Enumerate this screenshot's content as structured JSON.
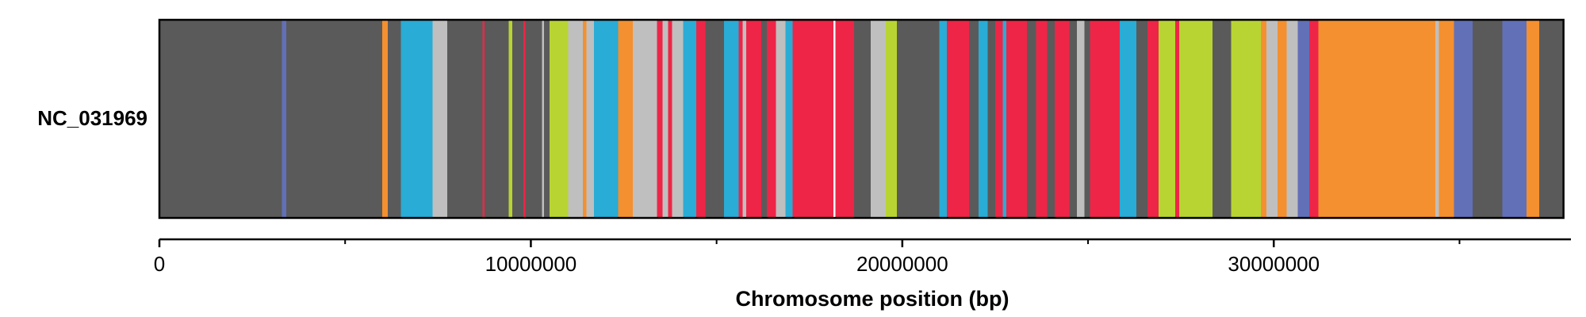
{
  "chart_data": {
    "type": "heatmap",
    "title": "",
    "xlabel": "Chromosome position (bp)",
    "ylabel": "",
    "xlim": [
      0,
      38000000
    ],
    "xticks": [
      0,
      10000000,
      20000000,
      30000000
    ],
    "xtick_labels": [
      "0",
      "10000000",
      "20000000",
      "30000000"
    ],
    "minor_xticks": [
      5000000,
      15000000,
      25000000,
      35000000
    ],
    "legend": "none",
    "grid": false,
    "rows": [
      {
        "label": "NC_031969",
        "track_end": 37800000,
        "segments": [
          {
            "start": 0,
            "end": 3300000,
            "color": "#5a5a5a"
          },
          {
            "start": 3300000,
            "end": 3420000,
            "color": "#6270b8"
          },
          {
            "start": 3420000,
            "end": 6000000,
            "color": "#5a5a5a"
          },
          {
            "start": 6000000,
            "end": 6150000,
            "color": "#f4902f"
          },
          {
            "start": 6150000,
            "end": 6500000,
            "color": "#5a5a5a"
          },
          {
            "start": 6500000,
            "end": 7350000,
            "color": "#29acd5"
          },
          {
            "start": 7350000,
            "end": 7750000,
            "color": "#bfbfbf"
          },
          {
            "start": 7750000,
            "end": 8700000,
            "color": "#5a5a5a"
          },
          {
            "start": 8700000,
            "end": 8750000,
            "color": "#ee2547"
          },
          {
            "start": 8750000,
            "end": 9400000,
            "color": "#5a5a5a"
          },
          {
            "start": 9400000,
            "end": 9500000,
            "color": "#b8d432"
          },
          {
            "start": 9500000,
            "end": 9800000,
            "color": "#5a5a5a"
          },
          {
            "start": 9800000,
            "end": 9850000,
            "color": "#ee2547"
          },
          {
            "start": 9850000,
            "end": 10300000,
            "color": "#5a5a5a"
          },
          {
            "start": 10300000,
            "end": 10350000,
            "color": "#bfbfbf"
          },
          {
            "start": 10350000,
            "end": 10500000,
            "color": "#5a5a5a"
          },
          {
            "start": 10500000,
            "end": 11000000,
            "color": "#b8d432"
          },
          {
            "start": 11000000,
            "end": 11400000,
            "color": "#bfbfbf"
          },
          {
            "start": 11400000,
            "end": 11500000,
            "color": "#f4902f"
          },
          {
            "start": 11500000,
            "end": 11700000,
            "color": "#bfbfbf"
          },
          {
            "start": 11700000,
            "end": 12350000,
            "color": "#29acd5"
          },
          {
            "start": 12350000,
            "end": 12750000,
            "color": "#f4902f"
          },
          {
            "start": 12750000,
            "end": 13400000,
            "color": "#bfbfbf"
          },
          {
            "start": 13400000,
            "end": 13550000,
            "color": "#ee2547"
          },
          {
            "start": 13550000,
            "end": 13700000,
            "color": "#bfbfbf"
          },
          {
            "start": 13700000,
            "end": 13800000,
            "color": "#ee2547"
          },
          {
            "start": 13800000,
            "end": 14100000,
            "color": "#bfbfbf"
          },
          {
            "start": 14100000,
            "end": 14450000,
            "color": "#29acd5"
          },
          {
            "start": 14450000,
            "end": 14700000,
            "color": "#ee2547"
          },
          {
            "start": 14700000,
            "end": 15200000,
            "color": "#5a5a5a"
          },
          {
            "start": 15200000,
            "end": 15600000,
            "color": "#29acd5"
          },
          {
            "start": 15600000,
            "end": 15700000,
            "color": "#ee2547"
          },
          {
            "start": 15700000,
            "end": 15800000,
            "color": "#bfbfbf"
          },
          {
            "start": 15800000,
            "end": 16200000,
            "color": "#ee2547"
          },
          {
            "start": 16200000,
            "end": 16350000,
            "color": "#5a5a5a"
          },
          {
            "start": 16350000,
            "end": 16600000,
            "color": "#ee2547"
          },
          {
            "start": 16600000,
            "end": 16850000,
            "color": "#bfbfbf"
          },
          {
            "start": 16850000,
            "end": 17050000,
            "color": "#29acd5"
          },
          {
            "start": 17050000,
            "end": 18150000,
            "color": "#ee2547"
          },
          {
            "start": 18150000,
            "end": 18200000,
            "color": "#ffffff"
          },
          {
            "start": 18200000,
            "end": 18700000,
            "color": "#ee2547"
          },
          {
            "start": 18700000,
            "end": 19150000,
            "color": "#5a5a5a"
          },
          {
            "start": 19150000,
            "end": 19550000,
            "color": "#bfbfbf"
          },
          {
            "start": 19550000,
            "end": 19850000,
            "color": "#b8d432"
          },
          {
            "start": 19850000,
            "end": 21000000,
            "color": "#5a5a5a"
          },
          {
            "start": 21000000,
            "end": 21200000,
            "color": "#29acd5"
          },
          {
            "start": 21200000,
            "end": 21800000,
            "color": "#ee2547"
          },
          {
            "start": 21800000,
            "end": 22050000,
            "color": "#5a5a5a"
          },
          {
            "start": 22050000,
            "end": 22300000,
            "color": "#29acd5"
          },
          {
            "start": 22300000,
            "end": 22500000,
            "color": "#5a5a5a"
          },
          {
            "start": 22500000,
            "end": 22700000,
            "color": "#ee2547"
          },
          {
            "start": 22700000,
            "end": 22800000,
            "color": "#29acd5"
          },
          {
            "start": 22800000,
            "end": 23350000,
            "color": "#ee2547"
          },
          {
            "start": 23350000,
            "end": 23600000,
            "color": "#5a5a5a"
          },
          {
            "start": 23600000,
            "end": 23900000,
            "color": "#ee2547"
          },
          {
            "start": 23900000,
            "end": 24100000,
            "color": "#5a5a5a"
          },
          {
            "start": 24100000,
            "end": 24500000,
            "color": "#ee2547"
          },
          {
            "start": 24500000,
            "end": 24700000,
            "color": "#5a5a5a"
          },
          {
            "start": 24700000,
            "end": 24900000,
            "color": "#bfbfbf"
          },
          {
            "start": 24900000,
            "end": 25050000,
            "color": "#5a5a5a"
          },
          {
            "start": 25050000,
            "end": 25850000,
            "color": "#ee2547"
          },
          {
            "start": 25850000,
            "end": 26300000,
            "color": "#29acd5"
          },
          {
            "start": 26300000,
            "end": 26600000,
            "color": "#5a5a5a"
          },
          {
            "start": 26600000,
            "end": 26900000,
            "color": "#ee2547"
          },
          {
            "start": 26900000,
            "end": 27350000,
            "color": "#b8d432"
          },
          {
            "start": 27350000,
            "end": 27450000,
            "color": "#ee2547"
          },
          {
            "start": 27450000,
            "end": 28350000,
            "color": "#b8d432"
          },
          {
            "start": 28350000,
            "end": 28850000,
            "color": "#5a5a5a"
          },
          {
            "start": 28850000,
            "end": 29650000,
            "color": "#b8d432"
          },
          {
            "start": 29650000,
            "end": 29800000,
            "color": "#f4902f"
          },
          {
            "start": 29800000,
            "end": 30100000,
            "color": "#bfbfbf"
          },
          {
            "start": 30100000,
            "end": 30350000,
            "color": "#f4902f"
          },
          {
            "start": 30350000,
            "end": 30650000,
            "color": "#bfbfbf"
          },
          {
            "start": 30650000,
            "end": 30950000,
            "color": "#6270b8"
          },
          {
            "start": 30950000,
            "end": 31200000,
            "color": "#ee2547"
          },
          {
            "start": 31200000,
            "end": 34350000,
            "color": "#f4902f"
          },
          {
            "start": 34350000,
            "end": 34450000,
            "color": "#bfbfbf"
          },
          {
            "start": 34450000,
            "end": 34850000,
            "color": "#f4902f"
          },
          {
            "start": 34850000,
            "end": 35350000,
            "color": "#6270b8"
          },
          {
            "start": 35350000,
            "end": 36150000,
            "color": "#5a5a5a"
          },
          {
            "start": 36150000,
            "end": 36800000,
            "color": "#6270b8"
          },
          {
            "start": 36800000,
            "end": 37150000,
            "color": "#f4902f"
          },
          {
            "start": 37150000,
            "end": 37800000,
            "color": "#5a5a5a"
          }
        ]
      }
    ]
  }
}
